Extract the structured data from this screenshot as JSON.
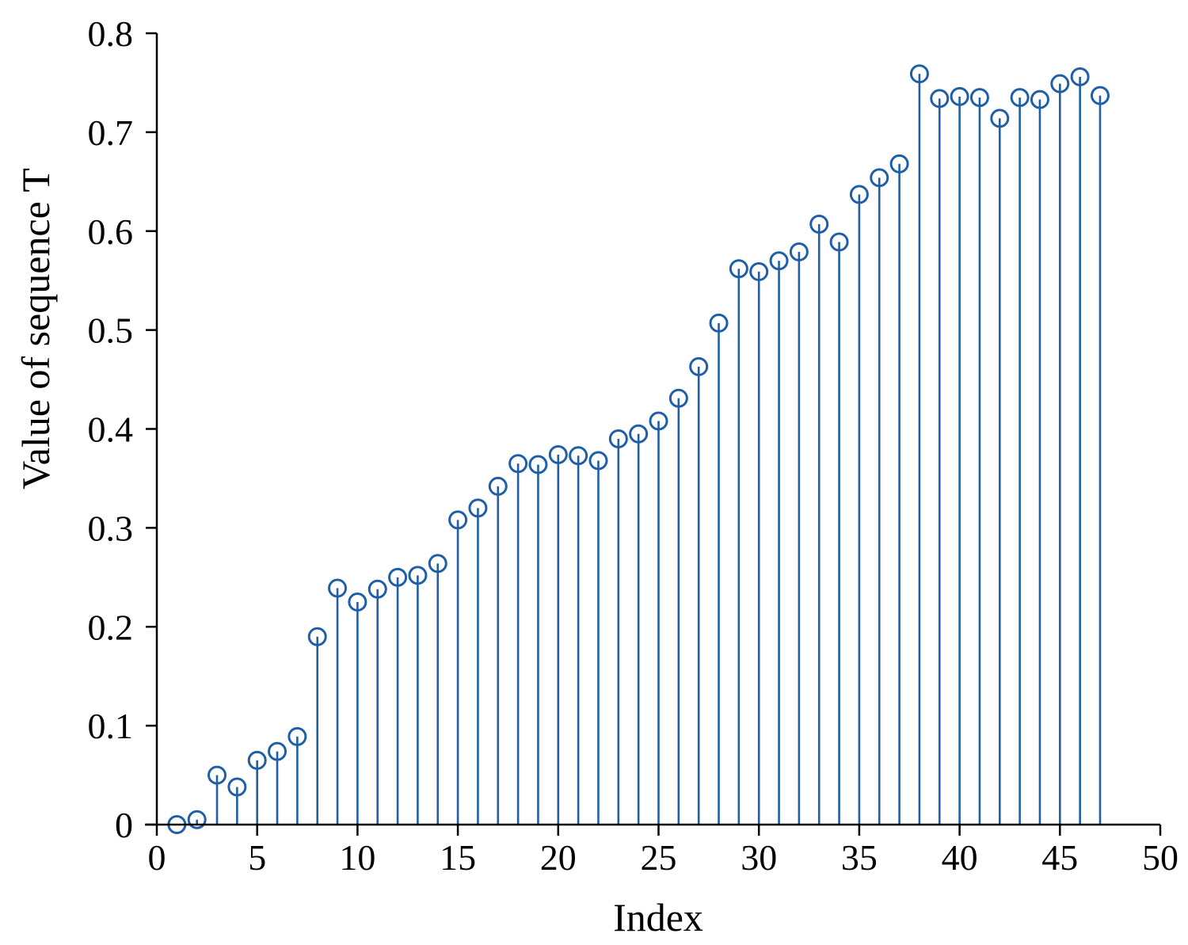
{
  "chart_data": {
    "type": "scatter",
    "style": "stem",
    "xlabel": "Index",
    "ylabel": "Value of sequence T",
    "xlim": [
      0,
      50
    ],
    "ylim": [
      0,
      0.8
    ],
    "xticks": [
      0,
      5,
      10,
      15,
      20,
      25,
      30,
      35,
      40,
      45,
      50
    ],
    "yticks": [
      0,
      0.1,
      0.2,
      0.3,
      0.4,
      0.5,
      0.6,
      0.7,
      0.8
    ],
    "xtick_labels": [
      "0",
      "5",
      "10",
      "15",
      "20",
      "25",
      "30",
      "35",
      "40",
      "45",
      "50"
    ],
    "ytick_labels": [
      "0",
      "0.1",
      "0.2",
      "0.3",
      "0.4",
      "0.5",
      "0.6",
      "0.7",
      "0.8"
    ],
    "grid": false,
    "color": "#1f5fa8",
    "series": [
      {
        "x": [
          1,
          2,
          3,
          4,
          5,
          6,
          7,
          8,
          9,
          10,
          11,
          12,
          13,
          14,
          15,
          16,
          17,
          18,
          19,
          20,
          21,
          22,
          23,
          24,
          25,
          26,
          27,
          28,
          29,
          30,
          31,
          32,
          33,
          34,
          35,
          36,
          37,
          38,
          39,
          40,
          41,
          42,
          43,
          44,
          45,
          46,
          47
        ],
        "values": [
          0.0,
          0.005,
          0.05,
          0.038,
          0.065,
          0.074,
          0.089,
          0.19,
          0.239,
          0.225,
          0.238,
          0.25,
          0.252,
          0.264,
          0.308,
          0.32,
          0.342,
          0.365,
          0.364,
          0.374,
          0.373,
          0.368,
          0.39,
          0.395,
          0.408,
          0.431,
          0.463,
          0.507,
          0.562,
          0.559,
          0.57,
          0.579,
          0.607,
          0.589,
          0.637,
          0.654,
          0.668,
          0.759,
          0.734,
          0.736,
          0.735,
          0.714,
          0.735,
          0.733,
          0.749,
          0.756,
          0.737
        ]
      }
    ]
  }
}
